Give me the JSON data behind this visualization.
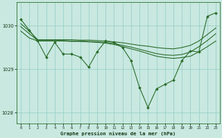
{
  "title": "Graphe pression niveau de la mer (hPa)",
  "hours": [
    0,
    1,
    2,
    3,
    4,
    5,
    6,
    7,
    8,
    9,
    10,
    11,
    12,
    13,
    14,
    15,
    16,
    17,
    18,
    19,
    20,
    21,
    22,
    23
  ],
  "main_line": [
    1030.15,
    1029.9,
    1029.65,
    1029.28,
    1029.62,
    1029.35,
    1029.35,
    1029.28,
    1029.05,
    1029.4,
    1029.65,
    1029.62,
    1029.5,
    1029.2,
    1028.58,
    1028.12,
    1028.55,
    1028.65,
    1028.75,
    1029.2,
    1029.42,
    1029.4,
    1030.22,
    1030.3
  ],
  "smooth_line1": [
    1030.05,
    1029.88,
    1029.68,
    1029.68,
    1029.68,
    1029.68,
    1029.68,
    1029.67,
    1029.67,
    1029.66,
    1029.65,
    1029.63,
    1029.61,
    1029.58,
    1029.55,
    1029.53,
    1029.5,
    1029.48,
    1029.47,
    1029.5,
    1029.55,
    1029.65,
    1029.8,
    1029.95
  ],
  "smooth_line2": [
    1029.88,
    1029.72,
    1029.65,
    1029.65,
    1029.65,
    1029.65,
    1029.64,
    1029.64,
    1029.63,
    1029.62,
    1029.6,
    1029.57,
    1029.52,
    1029.47,
    1029.42,
    1029.36,
    1029.3,
    1029.27,
    1029.25,
    1029.27,
    1029.3,
    1029.4,
    1029.52,
    1029.65
  ],
  "smooth_line3": [
    1029.98,
    1029.82,
    1029.66,
    1029.66,
    1029.66,
    1029.66,
    1029.65,
    1029.65,
    1029.64,
    1029.63,
    1029.62,
    1029.59,
    1029.55,
    1029.51,
    1029.46,
    1029.41,
    1029.36,
    1029.33,
    1029.32,
    1029.34,
    1029.4,
    1029.52,
    1029.66,
    1029.82
  ],
  "bg_color": "#c8e8e0",
  "grid_color": "#90ccc4",
  "line_color": "#2a6b2a",
  "ylim": [
    1027.75,
    1030.55
  ],
  "yticks": [
    1028,
    1029,
    1030
  ],
  "figsize": [
    3.2,
    2.0
  ],
  "dpi": 100
}
